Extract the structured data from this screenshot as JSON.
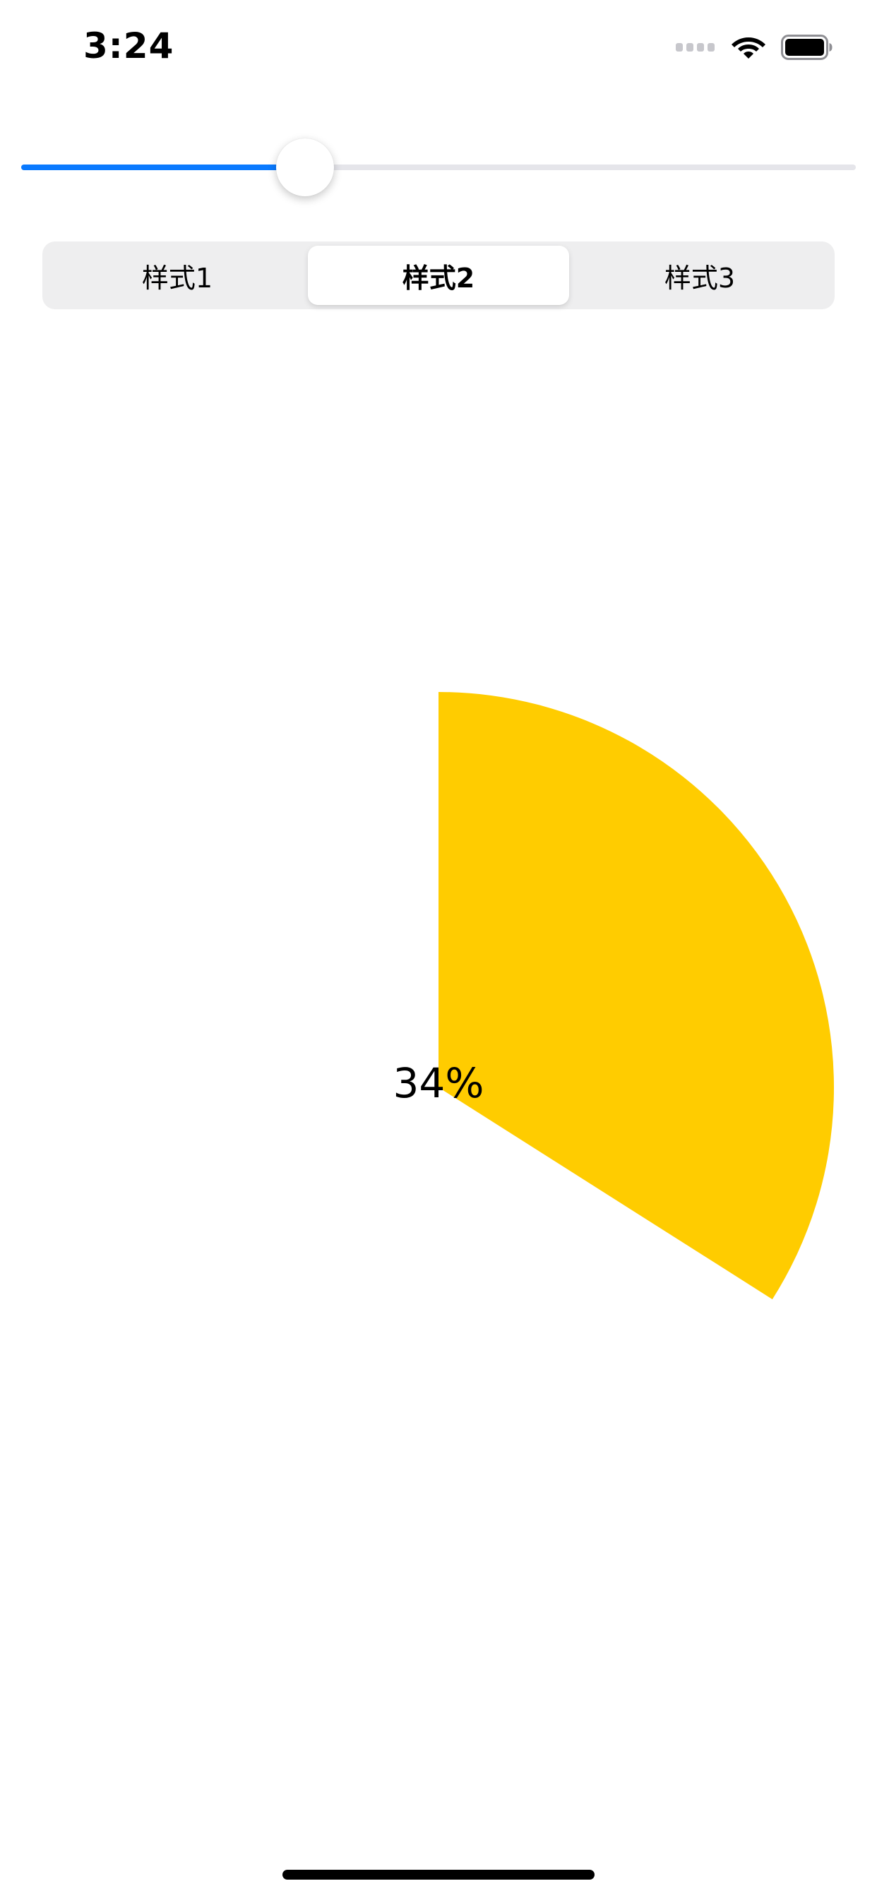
{
  "status_bar": {
    "time": "3:24",
    "icons": [
      "cellular-signal-icon",
      "wifi-icon",
      "battery-icon"
    ]
  },
  "slider": {
    "value": 0.34,
    "min": 0,
    "max": 1,
    "fill_color": "#0A7AFF",
    "track_color": "#E5E5EA"
  },
  "segmented_control": {
    "segments": [
      "样式1",
      "样式2",
      "样式3"
    ],
    "selected_index": 1
  },
  "chart_data": {
    "type": "pie",
    "values": [
      34
    ],
    "max": 100,
    "label": "34%",
    "color": "#FFCC00"
  }
}
